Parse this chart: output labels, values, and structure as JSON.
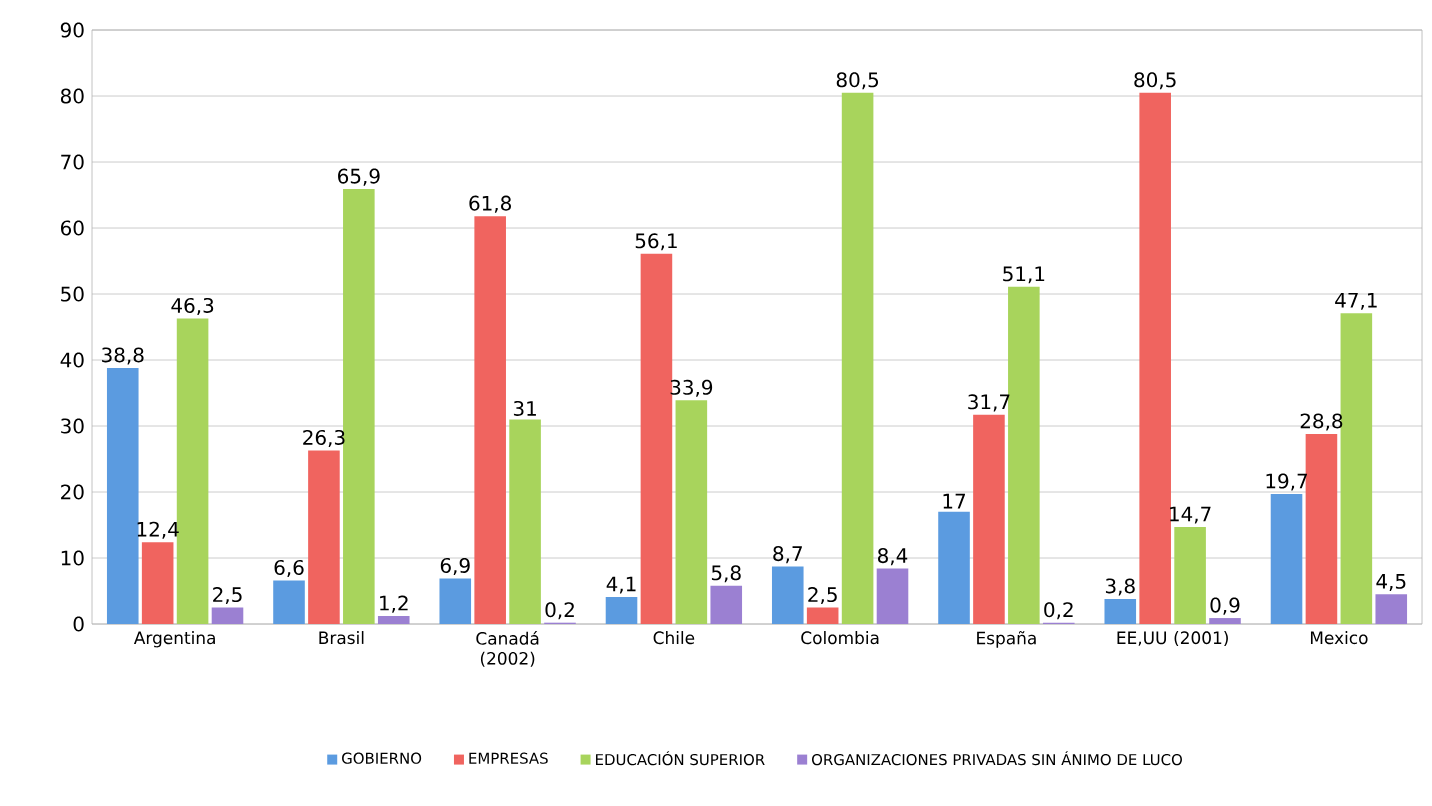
{
  "chart_data": {
    "type": "bar",
    "categories": [
      "Argentina",
      "Brasil",
      "Canadá (2002)",
      "Chile",
      "Colombia",
      "España",
      "EE,UU (2001)",
      "Mexico"
    ],
    "series": [
      {
        "name": "GOBIERNO",
        "color": "#5b9be0",
        "values": [
          38.8,
          6.6,
          6.9,
          4.1,
          8.7,
          17,
          3.8,
          19.7
        ],
        "value_labels": [
          "38,8",
          "6,6",
          "6,9",
          "4,1",
          "8,7",
          "17",
          "3,8",
          "19,7"
        ]
      },
      {
        "name": "EMPRESAS",
        "color": "#f0645f",
        "values": [
          12.4,
          26.3,
          61.8,
          56.1,
          2.5,
          31.7,
          80.5,
          28.8
        ],
        "value_labels": [
          "12,4",
          "26,3",
          "61,8",
          "56,1",
          "2,5",
          "31,7",
          "80,5",
          "28,8"
        ]
      },
      {
        "name": "EDUCACIÓN SUPERIOR",
        "color": "#a8d45c",
        "values": [
          46.3,
          65.9,
          31,
          33.9,
          80.5,
          51.1,
          14.7,
          47.1
        ],
        "value_labels": [
          "46,3",
          "65,9",
          "31",
          "33,9",
          "80,5",
          "51,1",
          "14,7",
          "47,1"
        ]
      },
      {
        "name": "ORGANIZACIONES PRIVADAS SIN ÁNIMO DE LUCO",
        "color": "#9b80d2",
        "values": [
          2.5,
          1.2,
          0.2,
          5.8,
          8.4,
          0.2,
          0.9,
          4.5
        ],
        "value_labels": [
          "2,5",
          "1,2",
          "0,2",
          "5,8",
          "8,4",
          "0,2",
          "0,9",
          "4,5"
        ]
      }
    ],
    "ylim": [
      0,
      90
    ],
    "yticks": [
      0,
      10,
      20,
      30,
      40,
      50,
      60,
      70,
      80,
      90
    ],
    "grid": "y",
    "legend": "bottom"
  }
}
